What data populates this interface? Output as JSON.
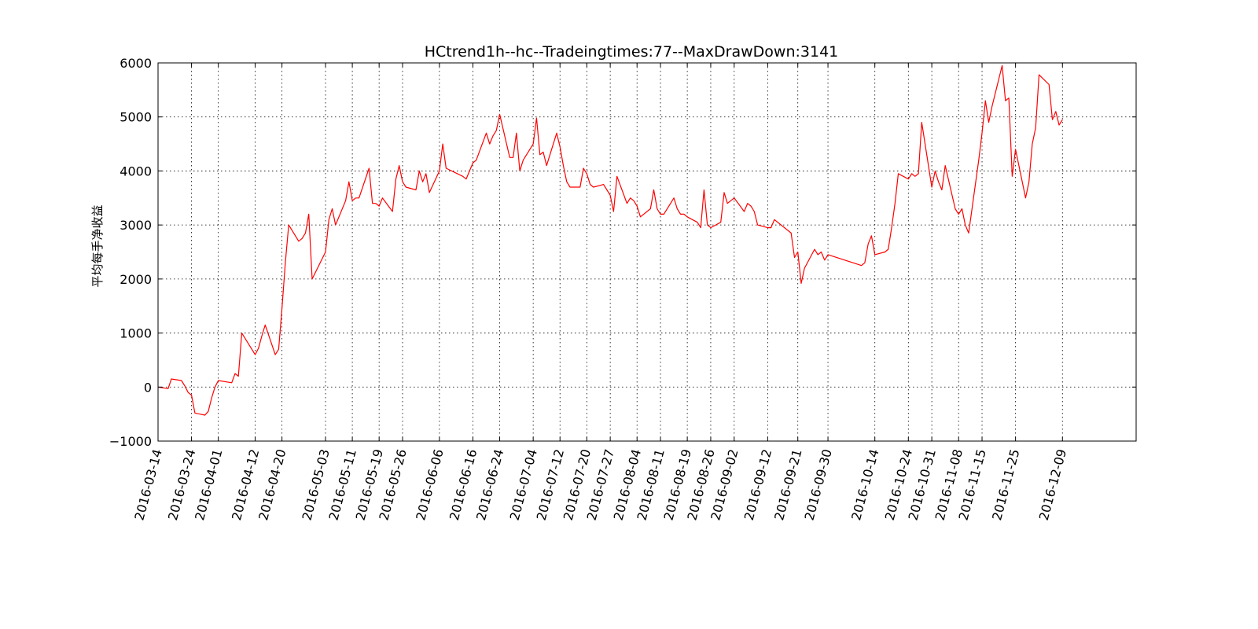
{
  "chart_data": {
    "type": "line",
    "title": "HCtrend1h--hc--Tradeingtimes:77--MaxDrawDown:3141",
    "xlabel": "",
    "ylabel": "平均每手净收益",
    "ylim": [
      -1000,
      6000
    ],
    "xlim": [
      "2016-03-14",
      "2016-12-31"
    ],
    "grid": true,
    "yticks": [
      -1000,
      0,
      1000,
      2000,
      3000,
      4000,
      5000,
      6000
    ],
    "ytick_labels": [
      "−1000",
      "0",
      "1000",
      "2000",
      "3000",
      "4000",
      "5000",
      "6000"
    ],
    "xticks": [
      "2016-03-14",
      "2016-03-24",
      "2016-04-01",
      "2016-04-12",
      "2016-04-20",
      "2016-05-03",
      "2016-05-11",
      "2016-05-19",
      "2016-05-26",
      "2016-06-06",
      "2016-06-16",
      "2016-06-24",
      "2016-07-04",
      "2016-07-12",
      "2016-07-20",
      "2016-07-27",
      "2016-08-04",
      "2016-08-11",
      "2016-08-19",
      "2016-08-26",
      "2016-09-02",
      "2016-09-12",
      "2016-09-21",
      "2016-09-30",
      "2016-10-14",
      "2016-10-24",
      "2016-10-31",
      "2016-11-08",
      "2016-11-15",
      "2016-11-25",
      "2016-12-09"
    ],
    "series": [
      {
        "color": "#ff0000",
        "x": [
          "2016-03-14",
          "2016-03-17",
          "2016-03-18",
          "2016-03-21",
          "2016-03-22",
          "2016-03-23",
          "2016-03-24",
          "2016-03-25",
          "2016-03-28",
          "2016-03-29",
          "2016-03-30",
          "2016-03-31",
          "2016-04-01",
          "2016-04-05",
          "2016-04-06",
          "2016-04-07",
          "2016-04-08",
          "2016-04-11",
          "2016-04-12",
          "2016-04-13",
          "2016-04-14",
          "2016-04-15",
          "2016-04-18",
          "2016-04-19",
          "2016-04-20",
          "2016-04-21",
          "2016-04-22",
          "2016-04-25",
          "2016-04-26",
          "2016-04-27",
          "2016-04-28",
          "2016-04-29",
          "2016-05-03",
          "2016-05-04",
          "2016-05-05",
          "2016-05-06",
          "2016-05-09",
          "2016-05-10",
          "2016-05-11",
          "2016-05-12",
          "2016-05-13",
          "2016-05-16",
          "2016-05-17",
          "2016-05-18",
          "2016-05-19",
          "2016-05-20",
          "2016-05-23",
          "2016-05-24",
          "2016-05-25",
          "2016-05-26",
          "2016-05-27",
          "2016-05-30",
          "2016-05-31",
          "2016-06-01",
          "2016-06-02",
          "2016-06-03",
          "2016-06-06",
          "2016-06-07",
          "2016-06-08",
          "2016-06-13",
          "2016-06-14",
          "2016-06-15",
          "2016-06-16",
          "2016-06-17",
          "2016-06-20",
          "2016-06-21",
          "2016-06-22",
          "2016-06-23",
          "2016-06-24",
          "2016-06-27",
          "2016-06-28",
          "2016-06-29",
          "2016-06-30",
          "2016-07-01",
          "2016-07-04",
          "2016-07-05",
          "2016-07-06",
          "2016-07-07",
          "2016-07-08",
          "2016-07-11",
          "2016-07-12",
          "2016-07-13",
          "2016-07-14",
          "2016-07-15",
          "2016-07-18",
          "2016-07-19",
          "2016-07-20",
          "2016-07-21",
          "2016-07-22",
          "2016-07-25",
          "2016-07-26",
          "2016-07-27",
          "2016-07-28",
          "2016-07-29",
          "2016-08-01",
          "2016-08-02",
          "2016-08-03",
          "2016-08-04",
          "2016-08-05",
          "2016-08-08",
          "2016-08-09",
          "2016-08-10",
          "2016-08-11",
          "2016-08-12",
          "2016-08-15",
          "2016-08-16",
          "2016-08-17",
          "2016-08-18",
          "2016-08-19",
          "2016-08-22",
          "2016-08-23",
          "2016-08-24",
          "2016-08-25",
          "2016-08-26",
          "2016-08-29",
          "2016-08-30",
          "2016-08-31",
          "2016-09-01",
          "2016-09-02",
          "2016-09-05",
          "2016-09-06",
          "2016-09-07",
          "2016-09-08",
          "2016-09-09",
          "2016-09-12",
          "2016-09-13",
          "2016-09-14",
          "2016-09-19",
          "2016-09-20",
          "2016-09-21",
          "2016-09-22",
          "2016-09-23",
          "2016-09-26",
          "2016-09-27",
          "2016-09-28",
          "2016-09-29",
          "2016-09-30",
          "2016-10-10",
          "2016-10-11",
          "2016-10-12",
          "2016-10-13",
          "2016-10-14",
          "2016-10-17",
          "2016-10-18",
          "2016-10-19",
          "2016-10-20",
          "2016-10-21",
          "2016-10-24",
          "2016-10-25",
          "2016-10-26",
          "2016-10-27",
          "2016-10-28",
          "2016-10-31",
          "2016-11-01",
          "2016-11-02",
          "2016-11-03",
          "2016-11-04",
          "2016-11-07",
          "2016-11-08",
          "2016-11-09",
          "2016-11-10",
          "2016-11-11",
          "2016-11-14",
          "2016-11-15",
          "2016-11-16",
          "2016-11-17",
          "2016-11-18",
          "2016-11-21",
          "2016-11-22",
          "2016-11-23",
          "2016-11-24",
          "2016-11-25",
          "2016-11-28",
          "2016-11-29",
          "2016-11-30",
          "2016-12-01",
          "2016-12-02",
          "2016-12-05",
          "2016-12-06",
          "2016-12-07",
          "2016-12-08",
          "2016-12-09"
        ],
        "y": [
          0,
          -30,
          150,
          120,
          20,
          -100,
          -150,
          -480,
          -520,
          -450,
          -200,
          0,
          120,
          80,
          250,
          200,
          1000,
          700,
          600,
          720,
          950,
          1150,
          600,
          700,
          1450,
          2300,
          3000,
          2700,
          2750,
          2850,
          3200,
          2000,
          2500,
          3100,
          3300,
          3000,
          3450,
          3800,
          3450,
          3500,
          3500,
          4050,
          3400,
          3400,
          3350,
          3500,
          3250,
          3850,
          4100,
          3800,
          3700,
          3650,
          4000,
          3800,
          3950,
          3600,
          4000,
          4500,
          4050,
          3900,
          3850,
          4000,
          4150,
          4200,
          4700,
          4500,
          4650,
          4750,
          5050,
          4250,
          4250,
          4700,
          4000,
          4200,
          4500,
          4980,
          4300,
          4350,
          4100,
          4700,
          4450,
          4100,
          3800,
          3700,
          3700,
          4050,
          3950,
          3750,
          3700,
          3750,
          3650,
          3550,
          3250,
          3900,
          3400,
          3500,
          3450,
          3350,
          3150,
          3300,
          3650,
          3300,
          3200,
          3200,
          3500,
          3300,
          3200,
          3200,
          3150,
          3050,
          2950,
          3650,
          3000,
          2950,
          3050,
          3600,
          3400,
          3450,
          3500,
          3250,
          3400,
          3350,
          3250,
          3000,
          2950,
          2950,
          3100,
          2850,
          2400,
          2500,
          1920,
          2200,
          2550,
          2450,
          2500,
          2350,
          2450,
          2250,
          2300,
          2650,
          2800,
          2450,
          2500,
          2550,
          2950,
          3400,
          3950,
          3850,
          3950,
          3900,
          3950,
          4900,
          3700,
          4000,
          3800,
          3650,
          4100,
          3300,
          3200,
          3300,
          3000,
          2850,
          4200,
          4700,
          5300,
          4900,
          5200,
          5950,
          5300,
          5350,
          3900,
          4400,
          3500,
          3800,
          4500,
          4800,
          5780,
          5600,
          4950,
          5100,
          4850,
          4950
        ]
      }
    ]
  }
}
